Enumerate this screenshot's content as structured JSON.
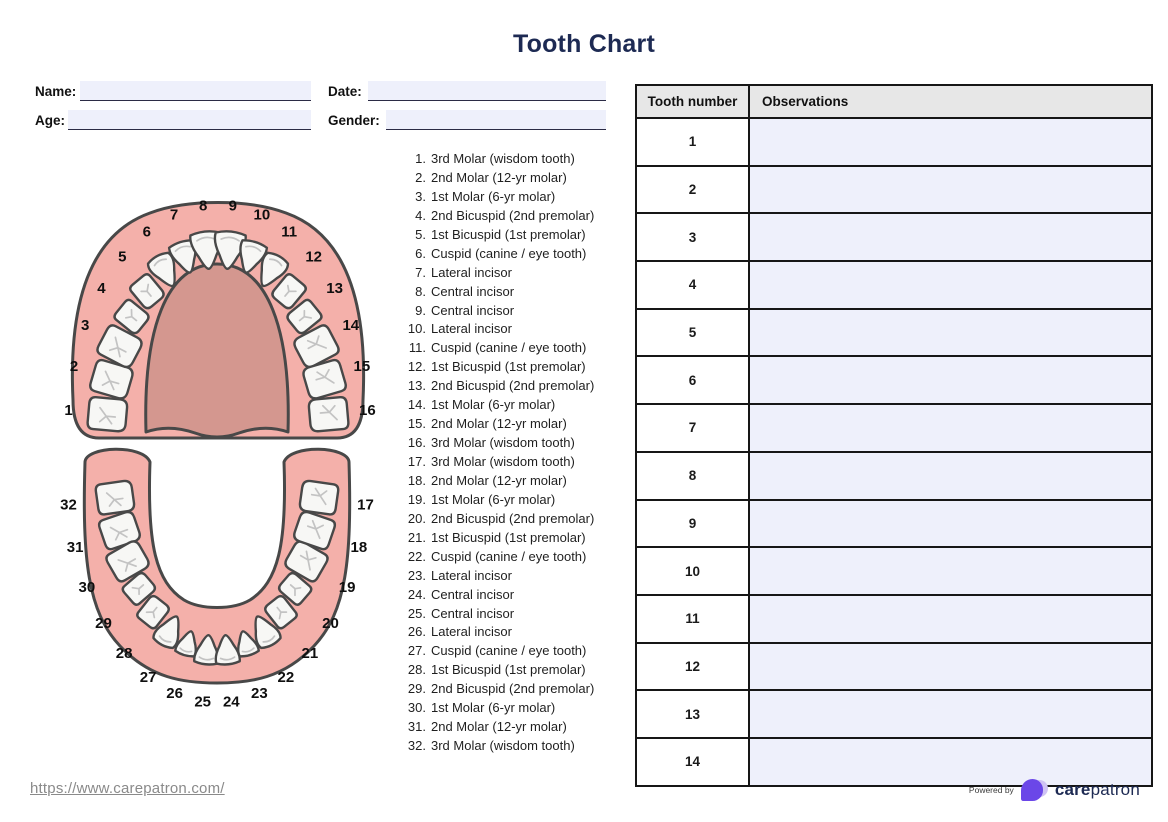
{
  "title": "Tooth Chart",
  "form": {
    "name_label": "Name:",
    "name_value": "",
    "date_label": "Date:",
    "date_value": "",
    "age_label": "Age:",
    "age_value": "",
    "gender_label": "Gender:",
    "gender_value": ""
  },
  "upper_arch": {
    "labels": [
      "1",
      "2",
      "3",
      "4",
      "5",
      "6",
      "7",
      "8",
      "9",
      "10",
      "11",
      "12",
      "13",
      "14",
      "15",
      "16"
    ]
  },
  "lower_arch": {
    "labels": [
      "17",
      "18",
      "19",
      "20",
      "21",
      "22",
      "23",
      "24",
      "25",
      "26",
      "27",
      "28",
      "29",
      "30",
      "31",
      "32"
    ]
  },
  "teeth_list": [
    {
      "num": "1.",
      "name": "3rd Molar (wisdom tooth)"
    },
    {
      "num": "2.",
      "name": "2nd Molar (12-yr molar)"
    },
    {
      "num": "3.",
      "name": "1st Molar (6-yr molar)"
    },
    {
      "num": "4.",
      "name": "2nd Bicuspid (2nd premolar)"
    },
    {
      "num": "5.",
      "name": "1st Bicuspid (1st premolar)"
    },
    {
      "num": "6.",
      "name": "Cuspid (canine / eye tooth)"
    },
    {
      "num": "7.",
      "name": "Lateral incisor"
    },
    {
      "num": "8.",
      "name": "Central incisor"
    },
    {
      "num": "9.",
      "name": "Central incisor"
    },
    {
      "num": "10.",
      "name": "Lateral incisor"
    },
    {
      "num": "11.",
      "name": "Cuspid (canine / eye tooth)"
    },
    {
      "num": "12.",
      "name": "1st Bicuspid (1st premolar)"
    },
    {
      "num": "13.",
      "name": "2nd Bicuspid (2nd premolar)"
    },
    {
      "num": "14.",
      "name": "1st Molar (6-yr molar)"
    },
    {
      "num": "15.",
      "name": "2nd Molar (12-yr molar)"
    },
    {
      "num": "16.",
      "name": "3rd Molar (wisdom tooth)"
    },
    {
      "num": "17.",
      "name": "3rd Molar (wisdom tooth)"
    },
    {
      "num": "18.",
      "name": "2nd Molar (12-yr molar)"
    },
    {
      "num": "19.",
      "name": "1st Molar (6-yr molar)"
    },
    {
      "num": "20.",
      "name": "2nd Bicuspid (2nd premolar)"
    },
    {
      "num": "21.",
      "name": "1st Bicuspid (1st premolar)"
    },
    {
      "num": "22.",
      "name": "Cuspid (canine / eye tooth)"
    },
    {
      "num": "23.",
      "name": "Lateral incisor"
    },
    {
      "num": "24.",
      "name": "Central incisor"
    },
    {
      "num": "25.",
      "name": "Central incisor"
    },
    {
      "num": "26.",
      "name": "Lateral incisor"
    },
    {
      "num": "27.",
      "name": "Cuspid (canine / eye tooth)"
    },
    {
      "num": "28.",
      "name": "1st Bicuspid (1st premolar)"
    },
    {
      "num": "29.",
      "name": "2nd Bicuspid (2nd premolar)"
    },
    {
      "num": "30.",
      "name": "1st Molar (6-yr molar)"
    },
    {
      "num": "31.",
      "name": "2nd Molar (12-yr molar)"
    },
    {
      "num": "32.",
      "name": "3rd Molar (wisdom tooth)"
    }
  ],
  "table": {
    "headers": [
      "Tooth number",
      "Observations"
    ],
    "rows": [
      {
        "tooth_number": "1",
        "observation": ""
      },
      {
        "tooth_number": "2",
        "observation": ""
      },
      {
        "tooth_number": "3",
        "observation": ""
      },
      {
        "tooth_number": "4",
        "observation": ""
      },
      {
        "tooth_number": "5",
        "observation": ""
      },
      {
        "tooth_number": "6",
        "observation": ""
      },
      {
        "tooth_number": "7",
        "observation": ""
      },
      {
        "tooth_number": "8",
        "observation": ""
      },
      {
        "tooth_number": "9",
        "observation": ""
      },
      {
        "tooth_number": "10",
        "observation": ""
      },
      {
        "tooth_number": "11",
        "observation": ""
      },
      {
        "tooth_number": "12",
        "observation": ""
      },
      {
        "tooth_number": "13",
        "observation": ""
      },
      {
        "tooth_number": "14",
        "observation": ""
      }
    ]
  },
  "footer": {
    "url": "https://www.carepatron.com/",
    "powered_by": "Powered by",
    "brand_bold": "care",
    "brand_regular": "patron"
  },
  "colors": {
    "accent_navy": "#1d2a53",
    "field_bg": "#eef0fb",
    "table_header_bg": "#e7e7e7",
    "gum_pink": "#f4b0aa",
    "palate_pink": "#d4978f",
    "tooth_outline": "#484848",
    "brand_purple": "#6b47e8",
    "brand_lavender": "#cfc3f4",
    "url_gray": "#8a8a8a"
  }
}
